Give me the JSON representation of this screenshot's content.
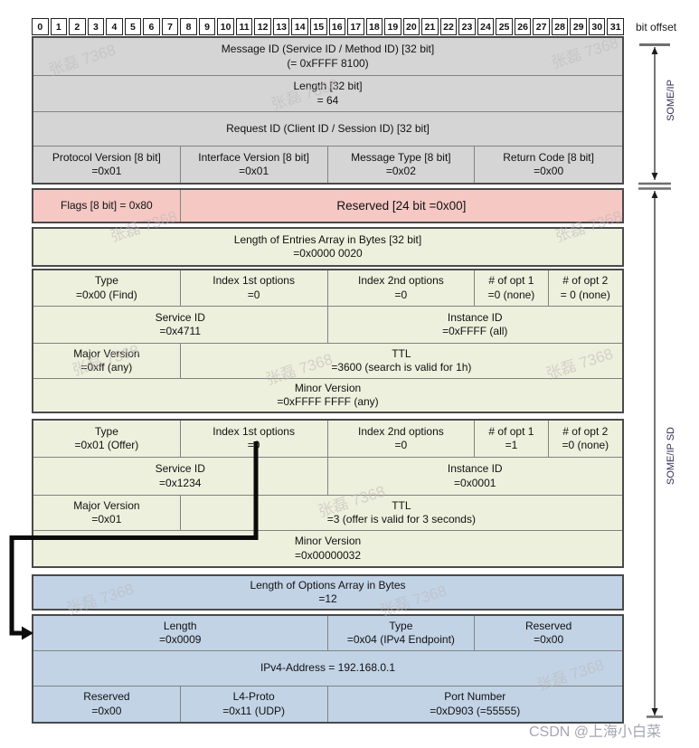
{
  "bit_offsets": [
    "0",
    "1",
    "2",
    "3",
    "4",
    "5",
    "6",
    "7",
    "8",
    "9",
    "10",
    "11",
    "12",
    "13",
    "14",
    "15",
    "16",
    "17",
    "18",
    "19",
    "20",
    "21",
    "22",
    "23",
    "24",
    "25",
    "26",
    "27",
    "28",
    "29",
    "30",
    "31"
  ],
  "bit_offset_label": "bit offset",
  "side_labels": {
    "someip": "SOME/IP",
    "someip_sd": "SOME/IP SD"
  },
  "colors": {
    "grey": "#d5d5d5",
    "pink": "#f5c8c4",
    "green": "#edf0dc",
    "blue": "#c2d3e6"
  },
  "someip_header": {
    "message_id": {
      "label": "Message ID (Service ID / Method ID) [32 bit]",
      "value": "(= 0xFFFF 8100)"
    },
    "length": {
      "label": "Length [32 bit]",
      "value": "= 64"
    },
    "request_id": {
      "label": "Request ID (Client ID / Session ID) [32 bit]"
    },
    "protocol_version": {
      "label": "Protocol Version [8 bit]",
      "value": "=0x01"
    },
    "interface_version": {
      "label": "Interface Version [8 bit]",
      "value": "=0x01"
    },
    "message_type": {
      "label": "Message Type [8 bit]",
      "value": "=0x02"
    },
    "return_code": {
      "label": "Return Code [8 bit]",
      "value": "=0x00"
    }
  },
  "sd_header": {
    "flags": {
      "label": "Flags [8 bit] = 0x80"
    },
    "reserved": {
      "label": "Reserved [24 bit =0x00]"
    },
    "entries_length": {
      "label": "Length of Entries Array in Bytes [32 bit]",
      "value": "=0x0000 0020"
    }
  },
  "entry_find": {
    "type": {
      "label": "Type",
      "value": "=0x00 (Find)"
    },
    "index1": {
      "label": "Index 1st options",
      "value": "=0"
    },
    "index2": {
      "label": "Index 2nd options",
      "value": "=0"
    },
    "opt1": {
      "label": "# of opt 1",
      "value": "=0 (none)"
    },
    "opt2": {
      "label": "# of opt 2",
      "value": "= 0 (none)"
    },
    "service_id": {
      "label": "Service ID",
      "value": "=0x4711"
    },
    "instance_id": {
      "label": "Instance ID",
      "value": "=0xFFFF (all)"
    },
    "major_version": {
      "label": "Major Version",
      "value": "=0xff (any)"
    },
    "ttl": {
      "label": "TTL",
      "value": "=3600 (search is valid for 1h)"
    },
    "minor_version": {
      "label": "Minor Version",
      "value": "=0xFFFF FFFF (any)"
    }
  },
  "entry_offer": {
    "type": {
      "label": "Type",
      "value": "=0x01 (Offer)"
    },
    "index1": {
      "label": "Index 1st options",
      "value": "=0"
    },
    "index2": {
      "label": "Index 2nd options",
      "value": "=0"
    },
    "opt1": {
      "label": "# of opt 1",
      "value": "=1"
    },
    "opt2": {
      "label": "# of opt 2",
      "value": "=0 (none)"
    },
    "service_id": {
      "label": "Service ID",
      "value": "=0x1234"
    },
    "instance_id": {
      "label": "Instance ID",
      "value": "=0x0001"
    },
    "major_version": {
      "label": "Major Version",
      "value": "=0x01"
    },
    "ttl": {
      "label": "TTL",
      "value": "=3 (offer is valid for 3 seconds)"
    },
    "minor_version": {
      "label": "Minor Version",
      "value": "=0x00000032"
    }
  },
  "options": {
    "options_length": {
      "label": "Length of Options Array in Bytes",
      "value": "=12"
    },
    "length": {
      "label": "Length",
      "value": "=0x0009"
    },
    "type": {
      "label": "Type",
      "value": "=0x04 (IPv4 Endpoint)"
    },
    "reserved": {
      "label": "Reserved",
      "value": "=0x00"
    },
    "ipv4": {
      "label": "IPv4-Address = 192.168.0.1"
    },
    "reserved2": {
      "label": "Reserved",
      "value": "=0x00"
    },
    "l4proto": {
      "label": "L4-Proto",
      "value": "=0x11 (UDP)"
    },
    "port": {
      "label": "Port Number",
      "value": "=0xD903 (=55555)"
    }
  },
  "watermarks": {
    "repeat": "张磊 7368",
    "csdn": "CSDN @上海小白菜"
  }
}
